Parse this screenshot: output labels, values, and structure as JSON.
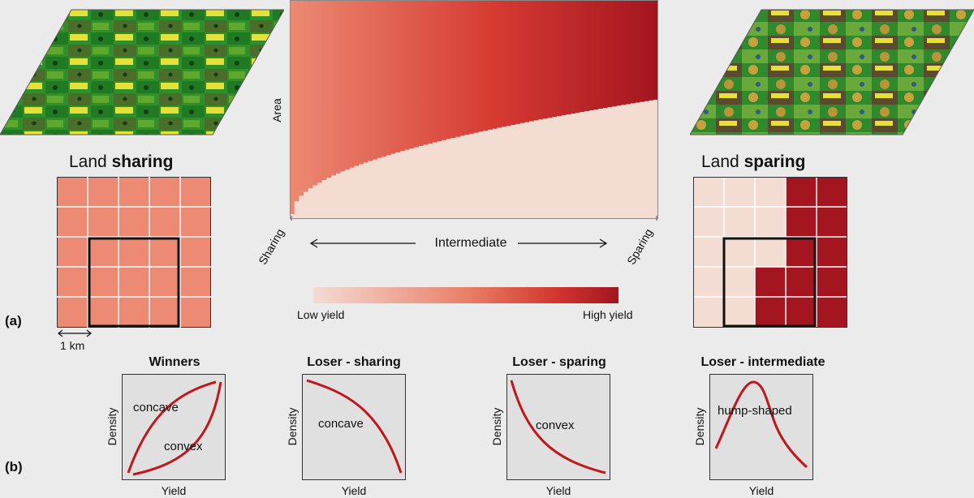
{
  "panel_labels": {
    "a": "(a)",
    "b": "(b)"
  },
  "landscapes": {
    "sharing": {
      "prefix": "Land ",
      "strong": "sharing",
      "scale_label": "1 km"
    },
    "sparing": {
      "prefix": "Land ",
      "strong": "sparing"
    }
  },
  "main_plot": {
    "ylabel": "Area",
    "x_left": "Sharing",
    "x_mid": "Intermediate",
    "x_right": "Sparing"
  },
  "colorbar": {
    "low": "Low yield",
    "high": "High yield"
  },
  "colors": {
    "low_yield": "#f3dcd2",
    "mid_yield": "#e9806a",
    "high_yield": "#a3151f",
    "curve": "#c0161c",
    "panel_bg": "#e0e0e0"
  },
  "curves": [
    {
      "title": "Winners",
      "xlabel": "Yield",
      "ylabel": "Density",
      "labels": [
        "concave",
        "convex"
      ]
    },
    {
      "title": "Loser - sharing",
      "xlabel": "Yield",
      "ylabel": "Density",
      "labels": [
        "concave"
      ]
    },
    {
      "title": "Loser - sparing",
      "xlabel": "Yield",
      "ylabel": "Density",
      "labels": [
        "convex"
      ]
    },
    {
      "title": "Loser - intermediate",
      "xlabel": "Yield",
      "ylabel": "Density",
      "labels": [
        "hump-shaped"
      ]
    }
  ]
}
